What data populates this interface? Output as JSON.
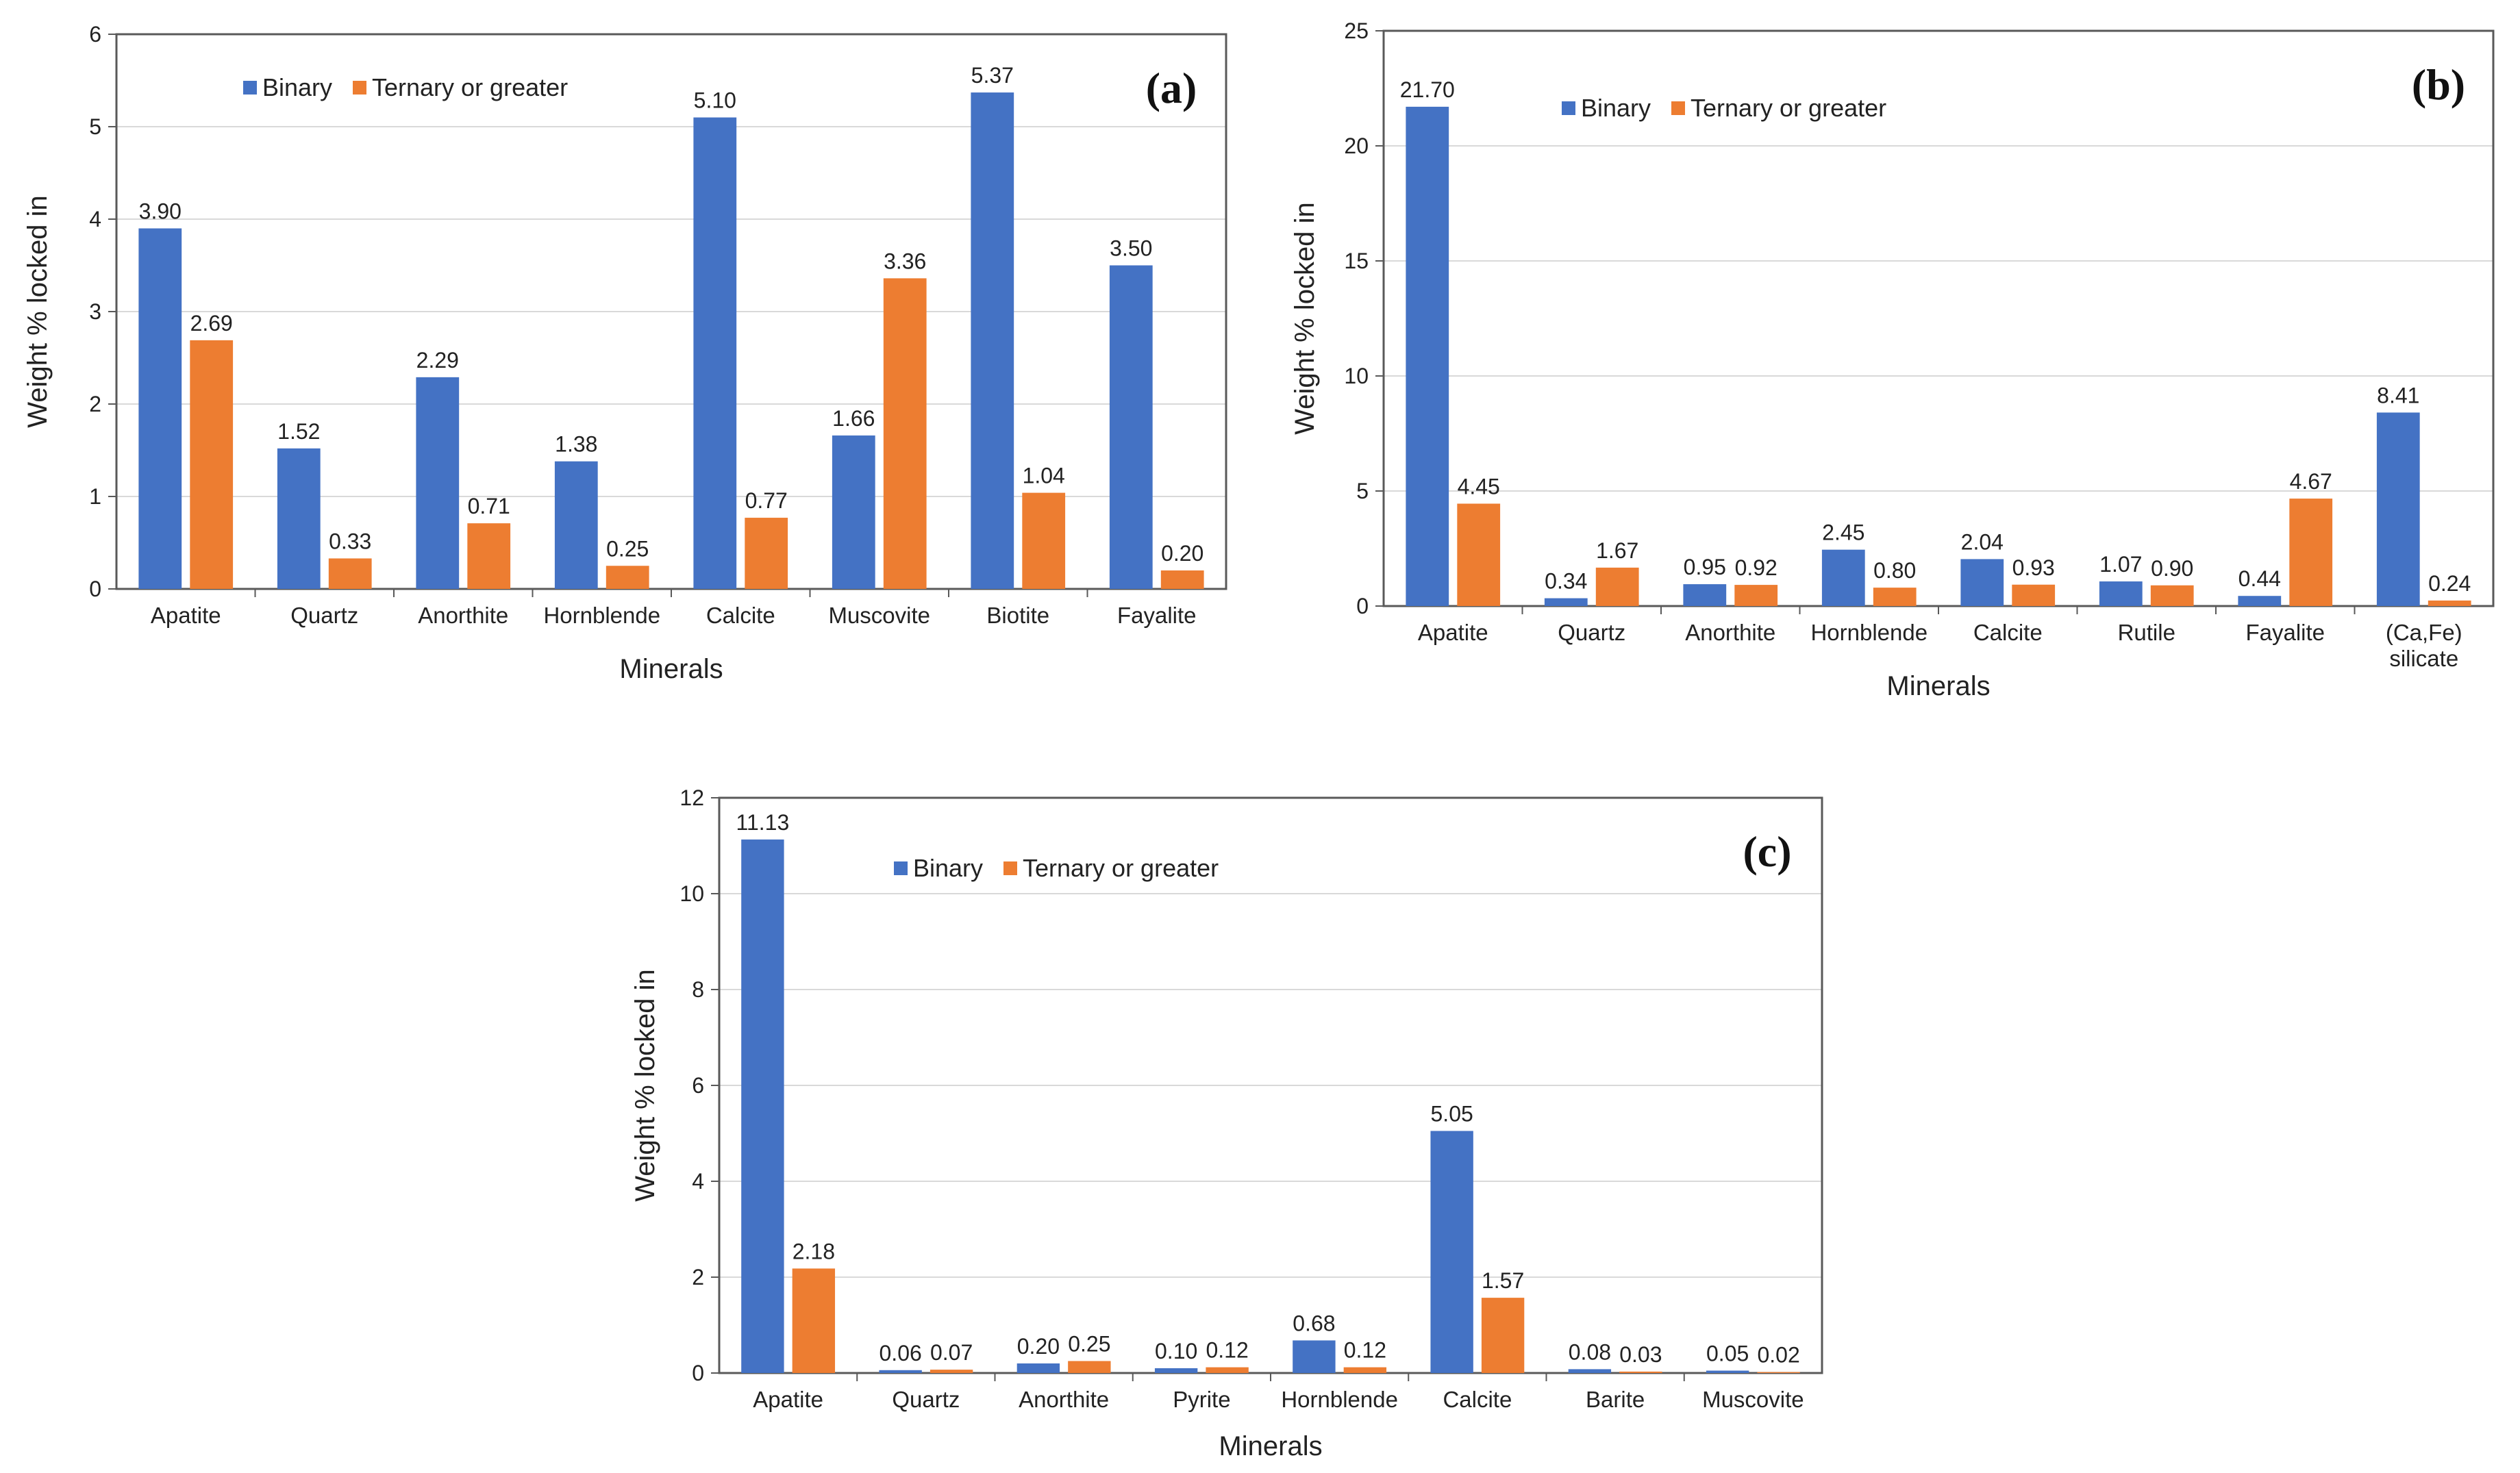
{
  "colors": {
    "binary": "#4472C4",
    "ternary": "#ED7D31",
    "grid": "#D9D9D9",
    "axis": "#595959"
  },
  "chart_data": [
    {
      "id": "a",
      "type": "bar",
      "panel_label": "(a)",
      "title": "",
      "xlabel": "Minerals",
      "ylabel": "Weight % locked in",
      "ylim": [
        0,
        6
      ],
      "yticks": [
        "0",
        "1",
        "2",
        "3",
        "4",
        "5",
        "6"
      ],
      "legend": [
        "Binary",
        "Ternary or greater"
      ],
      "legend_position": "top-left",
      "grid": true,
      "categories": [
        "Apatite",
        "Quartz",
        "Anorthite",
        "Hornblende",
        "Calcite",
        "Muscovite",
        "Biotite",
        "Fayalite"
      ],
      "series": [
        {
          "name": "Binary",
          "values": [
            3.9,
            1.52,
            2.29,
            1.38,
            5.1,
            1.66,
            5.37,
            3.5
          ],
          "labels": [
            "3.90",
            "1.52",
            "2.29",
            "1.38",
            "5.10",
            "1.66",
            "5.37",
            "3.50"
          ]
        },
        {
          "name": "Ternary or greater",
          "values": [
            2.69,
            0.33,
            0.71,
            0.25,
            0.77,
            3.36,
            1.04,
            0.2
          ],
          "labels": [
            "2.69",
            "0.33",
            "0.71",
            "0.25",
            "0.77",
            "3.36",
            "1.04",
            "0.20"
          ]
        }
      ]
    },
    {
      "id": "b",
      "type": "bar",
      "panel_label": "(b)",
      "title": "",
      "xlabel": "Minerals",
      "ylabel": "Weight % locked in",
      "ylim": [
        0,
        25
      ],
      "yticks": [
        "0",
        "5",
        "10",
        "15",
        "20",
        "25"
      ],
      "legend": [
        "Binary",
        "Ternary or greater"
      ],
      "legend_position": "top-left",
      "grid": true,
      "categories": [
        "Apatite",
        "Quartz",
        "Anorthite",
        "Hornblende",
        "Calcite",
        "Rutile",
        "Fayalite",
        "(Ca,Fe)\nsilicate"
      ],
      "series": [
        {
          "name": "Binary",
          "values": [
            21.7,
            0.34,
            0.95,
            2.45,
            2.04,
            1.07,
            0.44,
            8.41
          ],
          "labels": [
            "21.70",
            "0.34",
            "0.95",
            "2.45",
            "2.04",
            "1.07",
            "0.44",
            "8.41"
          ]
        },
        {
          "name": "Ternary or greater",
          "values": [
            4.45,
            1.67,
            0.92,
            0.8,
            0.93,
            0.9,
            4.67,
            0.24
          ],
          "labels": [
            "4.45",
            "1.67",
            "0.92",
            "0.80",
            "0.93",
            "0.90",
            "4.67",
            "0.24"
          ]
        }
      ]
    },
    {
      "id": "c",
      "type": "bar",
      "panel_label": "(c)",
      "title": "",
      "xlabel": "Minerals",
      "ylabel": "Weight % locked in",
      "ylim": [
        0,
        12
      ],
      "yticks": [
        "0",
        "2",
        "4",
        "6",
        "8",
        "10",
        "12"
      ],
      "legend": [
        "Binary",
        "Ternary or greater"
      ],
      "legend_position": "top-left",
      "grid": true,
      "categories": [
        "Apatite",
        "Quartz",
        "Anorthite",
        "Pyrite",
        "Hornblende",
        "Calcite",
        "Barite",
        "Muscovite"
      ],
      "series": [
        {
          "name": "Binary",
          "values": [
            11.13,
            0.06,
            0.2,
            0.1,
            0.68,
            5.05,
            0.08,
            0.05
          ],
          "labels": [
            "11.13",
            "0.06",
            "0.20",
            "0.10",
            "0.68",
            "5.05",
            "0.08",
            "0.05"
          ]
        },
        {
          "name": "Ternary or greater",
          "values": [
            2.18,
            0.07,
            0.25,
            0.12,
            0.12,
            1.57,
            0.03,
            0.02
          ],
          "labels": [
            "2.18",
            "0.07",
            "0.25",
            "0.12",
            "0.12",
            "1.57",
            "0.03",
            "0.02"
          ]
        }
      ]
    }
  ]
}
